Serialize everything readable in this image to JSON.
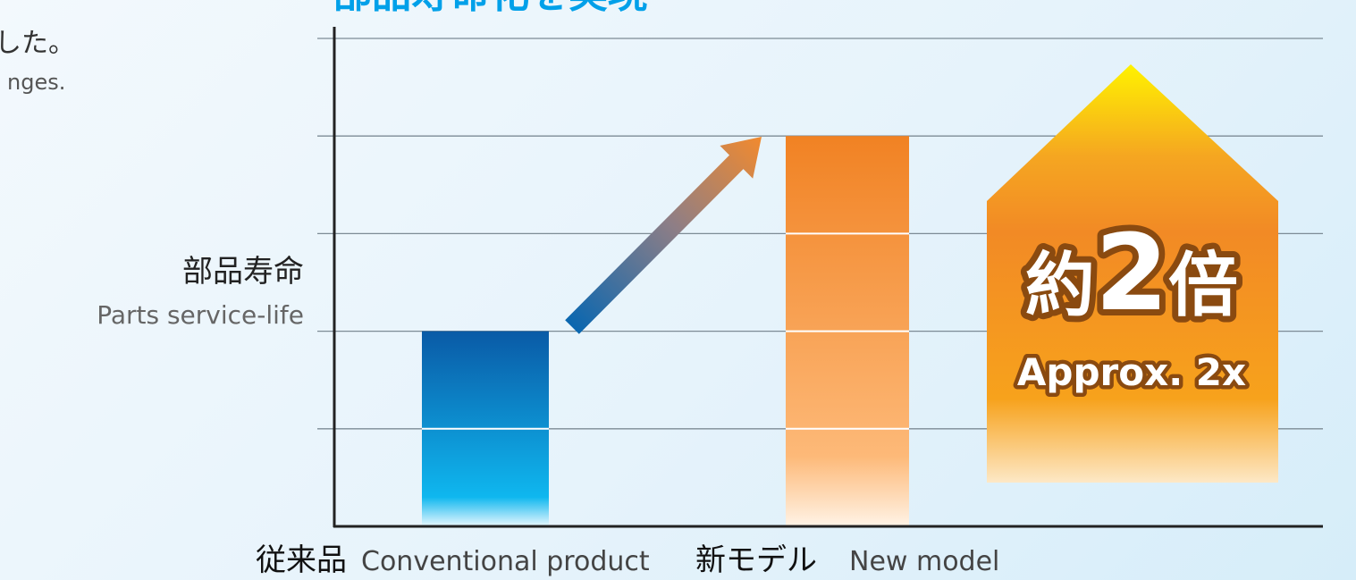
{
  "header": {
    "title_fragment": "部品寿命化を実現",
    "caption_jp_fragment": "した。",
    "caption_en_fragment": "nges."
  },
  "chart_data": {
    "type": "bar",
    "ylabel": "部品寿命",
    "ylabel_en": "Parts service-life",
    "ylim": [
      0,
      5
    ],
    "grid": true,
    "categories": [
      {
        "jp": "従来品",
        "en": "Conventional product"
      },
      {
        "jp": "新モデル",
        "en": "New model"
      }
    ],
    "values": [
      2,
      4
    ],
    "annotation": {
      "main_prefix": "約",
      "main_number": "2",
      "main_suffix": "倍",
      "sub": "Approx. 2x"
    }
  },
  "colors": {
    "title": "#00a0e9",
    "axis": "#222222",
    "grid": "#7d8b95",
    "text": "#333333",
    "subtext": "#555555",
    "blue_top": "#0a5aa6",
    "blue_bottom": "#0fb7ef",
    "orange_top": "#f18223",
    "orange_bottom": "#ffd9a6",
    "arrow_start": "#0065b3",
    "arrow_end": "#f28a2e",
    "badge_top": "#fff000",
    "badge_mid": "#f28a25",
    "badge_bottom": "#f7a619",
    "badge_text_fill": "#ffffff",
    "badge_text_stroke": "#8a4a10"
  }
}
